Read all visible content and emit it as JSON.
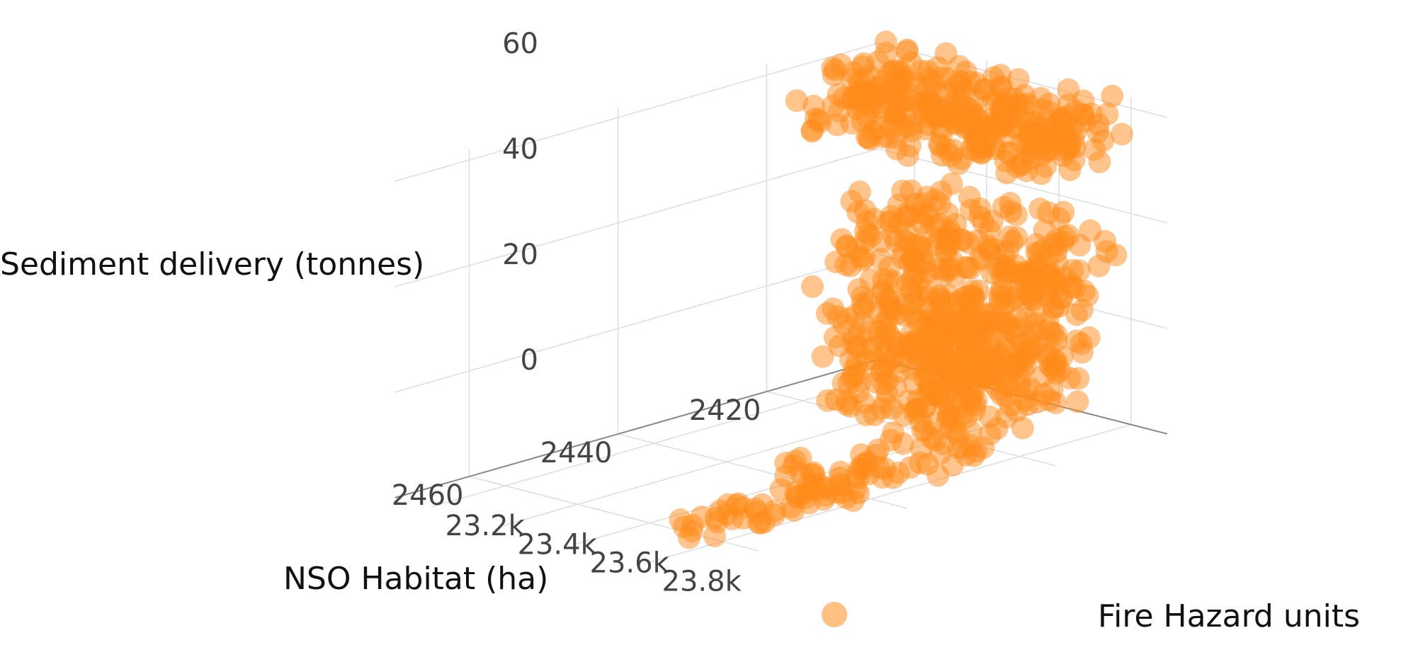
{
  "chart_data": {
    "type": "scatter",
    "is_3d": true,
    "marker_color": "#ff8c1a",
    "marker_opacity": 0.5,
    "grid": true,
    "legend_placement": "bottom",
    "axes": {
      "x": {
        "label": "Fire Hazard units",
        "ticks": [
          23200,
          23400,
          23600,
          23800
        ],
        "tick_labels": [
          "23.2k",
          "23.4k",
          "23.6k",
          "23.8k"
        ],
        "range": [
          23100,
          23900
        ]
      },
      "y": {
        "label": "NSO Habitat (ha)",
        "ticks": [
          2420,
          2440,
          2460
        ],
        "tick_labels": [
          "2420",
          "2440",
          "2460"
        ],
        "range": [
          2405,
          2470
        ]
      },
      "z": {
        "label": "Sediment delivery (tonnes)",
        "ticks": [
          0,
          20,
          40,
          60
        ],
        "tick_labels": [
          "0",
          "20",
          "40",
          "60"
        ],
        "range": [
          0,
          62
        ]
      }
    },
    "series": [
      {
        "name": "",
        "clusters": [
          {
            "fire": [
              23150,
              23800
            ],
            "nso": [
              2405,
              2420
            ],
            "sed": [
              50,
              62
            ],
            "count": 300
          },
          {
            "fire": [
              23200,
              23800
            ],
            "nso": [
              2405,
              2418
            ],
            "sed": [
              26,
              38
            ],
            "count": 150
          },
          {
            "fire": [
              23300,
              23800
            ],
            "nso": [
              2408,
              2425
            ],
            "sed": [
              14,
              30
            ],
            "count": 220
          },
          {
            "fire": [
              23400,
              23800
            ],
            "nso": [
              2410,
              2428
            ],
            "sed": [
              5,
              18
            ],
            "count": 220
          },
          {
            "fire": [
              23600,
              23800
            ],
            "nso": [
              2422,
              2445
            ],
            "sed": [
              0,
              6
            ],
            "count": 60
          },
          {
            "fire": [
              23650,
              23800
            ],
            "nso": [
              2440,
              2462
            ],
            "sed": [
              0,
              2
            ],
            "count": 40
          }
        ]
      }
    ]
  },
  "legend": {
    "marker": "circle"
  }
}
